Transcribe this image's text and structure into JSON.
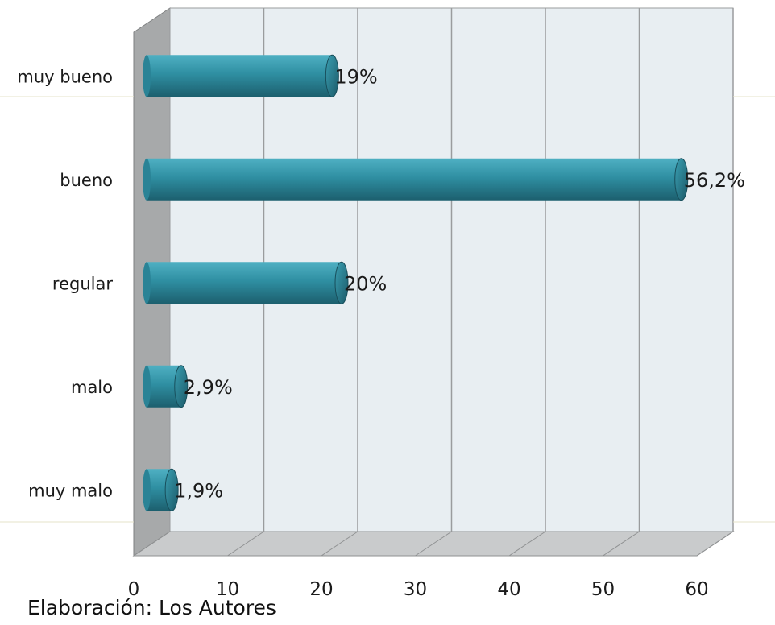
{
  "chart_data": {
    "type": "bar",
    "orientation": "horizontal",
    "categories": [
      "muy bueno",
      "bueno",
      "regular",
      "malo",
      "muy malo"
    ],
    "values": [
      19,
      56.2,
      20,
      2.9,
      1.9
    ],
    "data_labels": [
      "19%",
      "56,2%",
      "20%",
      "2,9%",
      "1,9%"
    ],
    "x_ticks": [
      "0",
      "10",
      "20",
      "30",
      "40",
      "50",
      "60"
    ],
    "xlim": [
      0,
      60
    ],
    "grid": true,
    "bar_color": "#2f8a9c",
    "wall_color": "#e8eef2",
    "side_wall_color": "#a7a9aa"
  },
  "caption": "Elaboración: Los Autores"
}
